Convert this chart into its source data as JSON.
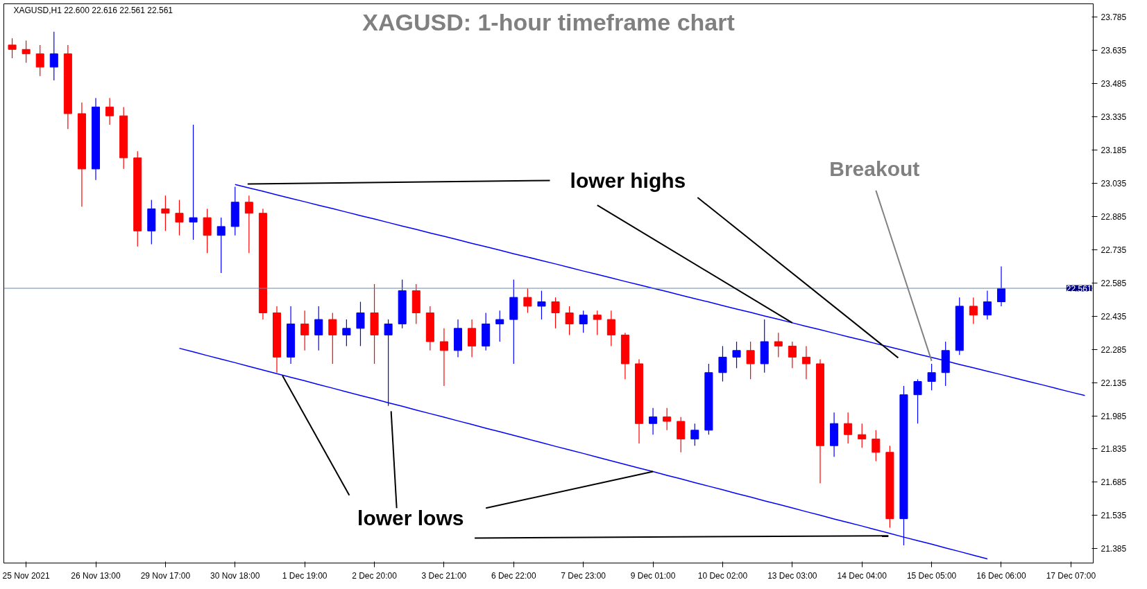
{
  "chart_data": {
    "type": "candlestick",
    "title": "XAGUSD: 1-hour timeframe chart",
    "categories": [
      null,
      "25 Nov 2021",
      null,
      null,
      null,
      null,
      "26 Nov 13:00",
      null,
      null,
      null,
      null,
      "29 Nov 17:00",
      null,
      null,
      null,
      null,
      "30 Nov 18:00",
      null,
      null,
      null,
      null,
      "1 Dec 19:00",
      null,
      null,
      null,
      null,
      "2 Dec 20:00",
      null,
      null,
      null,
      null,
      "3 Dec 21:00",
      null,
      null,
      null,
      null,
      "6 Dec 22:00",
      null,
      null,
      null,
      null,
      "7 Dec 23:00",
      null,
      null,
      null,
      null,
      "9 Dec 01:00",
      null,
      null,
      null,
      null,
      "10 Dec 02:00",
      null,
      null,
      null,
      null,
      "13 Dec 03:00",
      null,
      null,
      null,
      null,
      "14 Dec 04:00",
      null,
      null,
      null,
      null,
      "15 Dec 05:00",
      null,
      null,
      null,
      null,
      "16 Dec 06:00",
      null,
      null,
      null,
      null,
      "17 Dec 07:00",
      null
    ],
    "ohlc": [
      [
        23.66,
        23.69,
        23.6,
        23.64
      ],
      [
        23.64,
        23.68,
        23.58,
        23.62
      ],
      [
        23.62,
        23.66,
        23.52,
        23.56
      ],
      [
        23.56,
        23.72,
        23.5,
        23.62
      ],
      [
        23.62,
        23.66,
        23.28,
        23.35
      ],
      [
        23.35,
        23.4,
        22.93,
        23.1
      ],
      [
        23.1,
        23.42,
        23.05,
        23.38
      ],
      [
        23.38,
        23.42,
        23.3,
        23.34
      ],
      [
        23.34,
        23.38,
        23.1,
        23.15
      ],
      [
        23.15,
        23.18,
        22.75,
        22.82
      ],
      [
        22.82,
        22.96,
        22.76,
        22.92
      ],
      [
        22.92,
        22.98,
        22.82,
        22.9
      ],
      [
        22.9,
        22.96,
        22.8,
        22.86
      ],
      [
        22.86,
        23.3,
        22.78,
        22.88
      ],
      [
        22.88,
        22.92,
        22.72,
        22.8
      ],
      [
        22.8,
        22.88,
        22.63,
        22.84
      ],
      [
        22.84,
        23.02,
        22.8,
        22.95
      ],
      [
        22.95,
        22.98,
        22.72,
        22.9
      ],
      [
        22.9,
        22.92,
        22.42,
        22.45
      ],
      [
        22.45,
        22.48,
        22.18,
        22.25
      ],
      [
        22.25,
        22.48,
        22.22,
        22.4
      ],
      [
        22.4,
        22.46,
        22.28,
        22.35
      ],
      [
        22.35,
        22.48,
        22.28,
        22.42
      ],
      [
        22.42,
        22.45,
        22.22,
        22.35
      ],
      [
        22.35,
        22.42,
        22.3,
        22.38
      ],
      [
        22.38,
        22.5,
        22.3,
        22.45
      ],
      [
        22.45,
        22.58,
        22.22,
        22.35
      ],
      [
        22.35,
        22.42,
        22.03,
        22.4
      ],
      [
        22.4,
        22.6,
        22.38,
        22.55
      ],
      [
        22.55,
        22.58,
        22.4,
        22.45
      ],
      [
        22.45,
        22.48,
        22.28,
        22.32
      ],
      [
        22.32,
        22.38,
        22.12,
        22.28
      ],
      [
        22.28,
        22.42,
        22.25,
        22.38
      ],
      [
        22.38,
        22.42,
        22.25,
        22.3
      ],
      [
        22.3,
        22.45,
        22.28,
        22.4
      ],
      [
        22.4,
        22.46,
        22.32,
        22.42
      ],
      [
        22.42,
        22.6,
        22.22,
        22.52
      ],
      [
        22.52,
        22.56,
        22.45,
        22.48
      ],
      [
        22.48,
        22.55,
        22.42,
        22.5
      ],
      [
        22.5,
        22.52,
        22.38,
        22.45
      ],
      [
        22.45,
        22.48,
        22.35,
        22.4
      ],
      [
        22.4,
        22.46,
        22.36,
        22.44
      ],
      [
        22.44,
        22.46,
        22.35,
        22.42
      ],
      [
        22.42,
        22.46,
        22.3,
        22.35
      ],
      [
        22.35,
        22.36,
        22.15,
        22.22
      ],
      [
        22.22,
        22.24,
        21.86,
        21.95
      ],
      [
        21.95,
        22.02,
        21.9,
        21.98
      ],
      [
        21.98,
        22.02,
        21.92,
        21.96
      ],
      [
        21.96,
        21.98,
        21.82,
        21.88
      ],
      [
        21.88,
        21.95,
        21.85,
        21.92
      ],
      [
        21.92,
        22.22,
        21.9,
        22.18
      ],
      [
        22.18,
        22.3,
        22.14,
        22.25
      ],
      [
        22.25,
        22.32,
        22.2,
        22.28
      ],
      [
        22.28,
        22.32,
        22.15,
        22.22
      ],
      [
        22.22,
        22.42,
        22.18,
        22.32
      ],
      [
        22.32,
        22.36,
        22.25,
        22.3
      ],
      [
        22.3,
        22.32,
        22.2,
        22.25
      ],
      [
        22.25,
        22.3,
        22.15,
        22.22
      ],
      [
        22.22,
        22.24,
        21.68,
        21.85
      ],
      [
        21.85,
        22.0,
        21.8,
        21.95
      ],
      [
        21.95,
        22.0,
        21.86,
        21.9
      ],
      [
        21.9,
        21.95,
        21.84,
        21.88
      ],
      [
        21.88,
        21.92,
        21.78,
        21.82
      ],
      [
        21.82,
        21.85,
        21.48,
        21.52
      ],
      [
        21.52,
        22.12,
        21.4,
        22.08
      ],
      [
        22.08,
        22.15,
        21.95,
        22.14
      ],
      [
        22.14,
        22.22,
        22.1,
        22.18
      ],
      [
        22.18,
        22.32,
        22.12,
        22.28
      ],
      [
        22.28,
        22.52,
        22.26,
        22.48
      ],
      [
        22.48,
        22.52,
        22.4,
        22.44
      ],
      [
        22.44,
        22.55,
        22.42,
        22.5
      ],
      [
        22.5,
        22.66,
        22.48,
        22.56
      ],
      null,
      null,
      null,
      null,
      null,
      null
    ],
    "colors": [
      "#ff0000",
      "#ff0000",
      "#ff0000",
      "#0000ff",
      "#ff0000",
      "#ff0000",
      "#0000ff",
      "#ff0000",
      "#ff0000",
      "#ff0000",
      "#0000ff",
      "#ff0000",
      "#ff0000",
      "#0000ff",
      "#ff0000",
      "#0000ff",
      "#0000ff",
      "#ff0000",
      "#ff0000",
      "#ff0000",
      "#0000ff",
      "#ff0000",
      "#0000ff",
      "#ff0000",
      "#0000ff",
      "#0000ff",
      "#ff0000",
      "#0000ff",
      "#0000ff",
      "#ff0000",
      "#ff0000",
      "#ff0000",
      "#0000ff",
      "#ff0000",
      "#0000ff",
      "#0000ff",
      "#0000ff",
      "#ff0000",
      "#0000ff",
      "#ff0000",
      "#ff0000",
      "#0000ff",
      "#ff0000",
      "#ff0000",
      "#ff0000",
      "#ff0000",
      "#0000ff",
      "#ff0000",
      "#ff0000",
      "#0000ff",
      "#0000ff",
      "#0000ff",
      "#0000ff",
      "#ff0000",
      "#0000ff",
      "#ff0000",
      "#ff0000",
      "#ff0000",
      "#ff0000",
      "#0000ff",
      "#ff0000",
      "#ff0000",
      "#ff0000",
      "#ff0000",
      "#0000ff",
      "#0000ff",
      "#0000ff",
      "#0000ff",
      "#0000ff",
      "#ff0000",
      "#0000ff",
      "#0000ff",
      null,
      null,
      null,
      null,
      null,
      null
    ],
    "series": [
      {
        "type": "line",
        "color": "#0000ff",
        "values": [
          null,
          null,
          null,
          null,
          null,
          null,
          null,
          null,
          null,
          null,
          null,
          null,
          null,
          null,
          null,
          null,
          23.03,
          23.014,
          22.999,
          22.983,
          22.967,
          22.952,
          22.936,
          22.921,
          22.905,
          22.889,
          22.874,
          22.858,
          22.842,
          22.827,
          22.811,
          22.796,
          22.78,
          22.764,
          22.749,
          22.733,
          22.717,
          22.702,
          22.686,
          22.671,
          22.655,
          22.639,
          22.624,
          22.608,
          22.592,
          22.577,
          22.561,
          22.546,
          22.53,
          22.514,
          22.499,
          22.483,
          22.467,
          22.452,
          22.436,
          22.421,
          22.405,
          22.389,
          22.374,
          22.358,
          22.342,
          22.327,
          22.311,
          22.296,
          22.28,
          22.264,
          22.249,
          22.233,
          22.217,
          22.202,
          22.186,
          22.171,
          22.155,
          22.139,
          22.124,
          22.108,
          22.092,
          22.077
        ]
      },
      {
        "type": "line",
        "color": "#0000ff",
        "values": [
          null,
          null,
          null,
          null,
          null,
          null,
          null,
          null,
          null,
          null,
          null,
          null,
          22.29,
          22.274,
          22.257,
          22.241,
          22.225,
          22.208,
          22.192,
          22.175,
          22.159,
          22.143,
          22.126,
          22.11,
          22.093,
          22.077,
          22.061,
          22.044,
          22.028,
          22.011,
          21.995,
          21.979,
          21.962,
          21.946,
          21.929,
          21.913,
          21.897,
          21.88,
          21.864,
          21.847,
          21.831,
          21.815,
          21.798,
          21.782,
          21.765,
          21.749,
          21.733,
          21.716,
          21.7,
          21.683,
          21.667,
          21.651,
          21.634,
          21.618,
          21.601,
          21.585,
          21.569,
          21.552,
          21.536,
          21.519,
          21.503,
          21.487,
          21.47,
          21.454,
          21.437,
          21.421,
          21.405,
          21.388,
          21.372,
          21.355,
          21.339,
          null,
          null,
          null,
          null,
          null,
          null,
          null
        ]
      }
    ],
    "ylim": [
      21.32,
      23.846
    ],
    "yticks": [
      21.385,
      21.535,
      21.685,
      21.835,
      21.985,
      22.135,
      22.285,
      22.435,
      22.585,
      22.735,
      22.885,
      23.035,
      23.185,
      23.335,
      23.485,
      23.635,
      23.785
    ],
    "ref_lines": [
      {
        "axis": "y",
        "value": 22.561,
        "label": "22.561",
        "color": "#6b87a8"
      }
    ],
    "annotations": [
      "XAGUSD,H1 22.600 22.616 22.561 22.561",
      {
        "text": "lower highs",
        "x": "13 Dec 03:00",
        "y": 22.405
      },
      {
        "text": "lower lows",
        "x": "9 Dec 01:00",
        "y": 21.733
      },
      {
        "text": "Breakout",
        "x": "15 Dec 05:00",
        "y": 22.233
      }
    ],
    "grid": false
  }
}
